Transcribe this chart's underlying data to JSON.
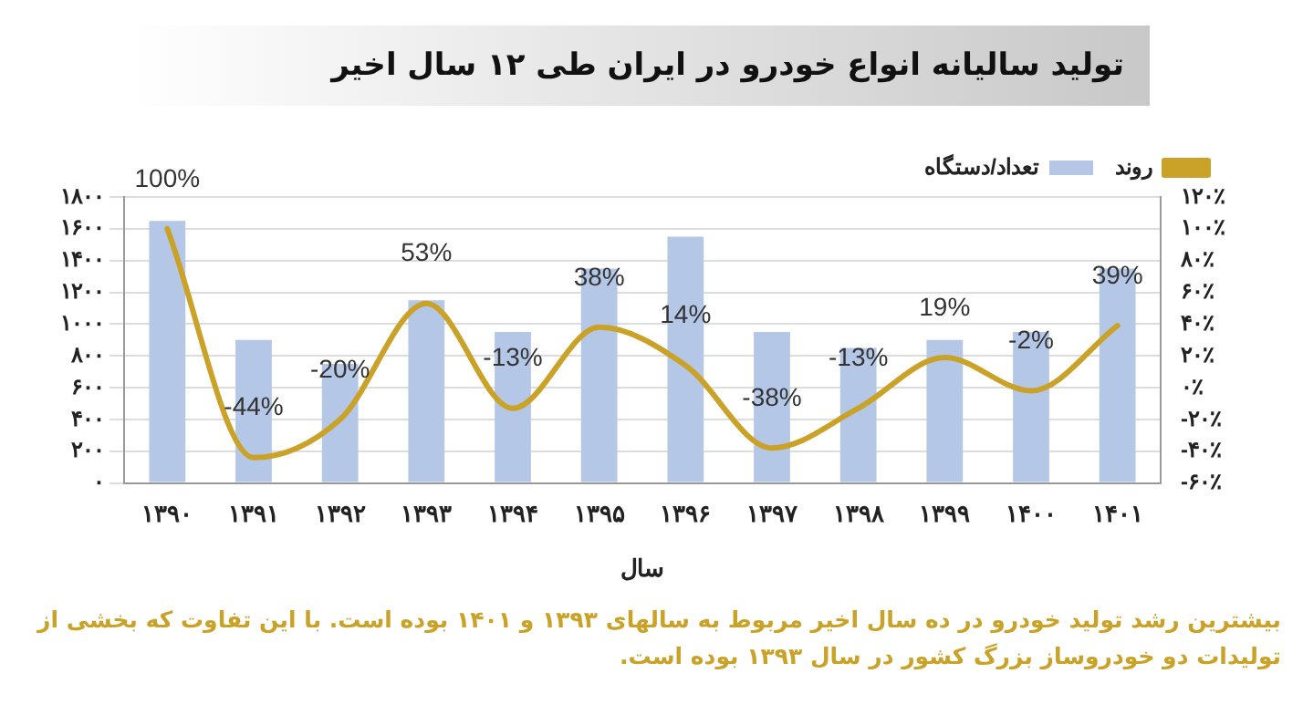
{
  "chart_data": {
    "type": "bar",
    "title": "تولید سالیانه انواع خودرو در ایران طی ۱۲ سال اخیر",
    "xlabel": "سال",
    "annotations": [
      "بیشترین رشد تولید خودرو در ده سال اخیر مربوط به سالهای ۱۳۹۳ و ۱۴۰۱ بوده است. با این تفاوت که بخشی از تولیدات دو خودروساز بزرگ کشور در سال ۱۳۹۳ بوده است."
    ],
    "categories": [
      "۱۳۹۰",
      "۱۳۹۱",
      "۱۳۹۲",
      "۱۳۹۳",
      "۱۳۹۴",
      "۱۳۹۵",
      "۱۳۹۶",
      "۱۳۹۷",
      "۱۳۹۸",
      "۱۳۹۹",
      "۱۴۰۰",
      "۱۴۰۱"
    ],
    "series": [
      {
        "name": "تعداد/دستگاه",
        "color": "#b4c7e7",
        "values": [
          1650,
          900,
          750,
          1150,
          950,
          1350,
          1550,
          950,
          850,
          900,
          950,
          1350
        ]
      },
      {
        "name": "روند",
        "type": "line",
        "axis": "y2",
        "color": "#c9a227",
        "values": [
          100,
          -44,
          -20,
          53,
          -13,
          38,
          14,
          -38,
          -13,
          19,
          -2,
          39
        ],
        "value_labels": [
          "100%",
          "-44%",
          "-20%",
          "53%",
          "-13%",
          "38%",
          "14%",
          "-38%",
          "-13%",
          "19%",
          "-2%",
          "39%"
        ]
      }
    ],
    "ylim": [
      0,
      1800
    ],
    "yticks": [
      {
        "value": 0,
        "label": "۰"
      },
      {
        "value": 200,
        "label": "۲۰۰"
      },
      {
        "value": 400,
        "label": "۴۰۰"
      },
      {
        "value": 600,
        "label": "۶۰۰"
      },
      {
        "value": 800,
        "label": "۸۰۰"
      },
      {
        "value": 1000,
        "label": "۱۰۰۰"
      },
      {
        "value": 1200,
        "label": "۱۲۰۰"
      },
      {
        "value": 1400,
        "label": "۱۴۰۰"
      },
      {
        "value": 1600,
        "label": "۱۶۰۰"
      },
      {
        "value": 1800,
        "label": "۱۸۰۰"
      }
    ],
    "y2lim": [
      -60,
      120
    ],
    "y2ticks": [
      {
        "value": -60,
        "label": "-۶۰٪"
      },
      {
        "value": -40,
        "label": "-۴۰٪"
      },
      {
        "value": -20,
        "label": "-۲۰٪"
      },
      {
        "value": 0,
        "label": "۰٪"
      },
      {
        "value": 20,
        "label": "۲۰٪"
      },
      {
        "value": 40,
        "label": "۴۰٪"
      },
      {
        "value": 60,
        "label": "۶۰٪"
      },
      {
        "value": 80,
        "label": "۸۰٪"
      },
      {
        "value": 100,
        "label": "۱۰۰٪"
      },
      {
        "value": 120,
        "label": "۱۲۰٪"
      }
    ],
    "grid": "y",
    "legend": "top right",
    "marker": "none",
    "line_style": "solid"
  }
}
